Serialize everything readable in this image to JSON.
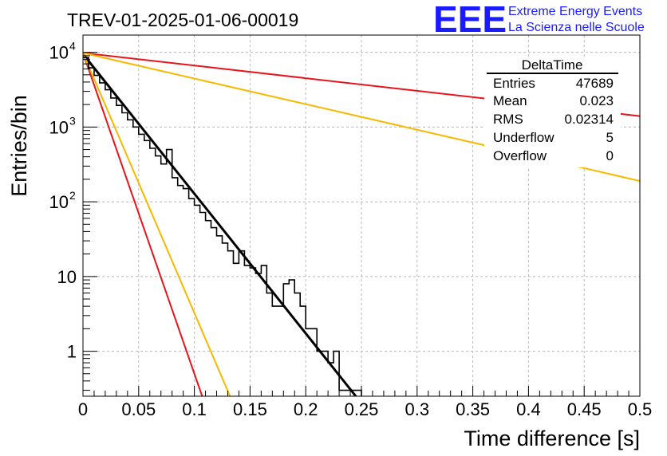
{
  "chart_data": {
    "type": "line",
    "title": "TREV-01-2025-01-06-00019",
    "xlabel": "Time difference [s]",
    "ylabel": "Entries/bin",
    "xlim": [
      0,
      0.5
    ],
    "ylim": [
      0.25,
      17000
    ],
    "yscale": "log",
    "grid": true,
    "x_ticks": [
      "0",
      "0.05",
      "0.1",
      "0.15",
      "0.2",
      "0.25",
      "0.3",
      "0.35",
      "0.4",
      "0.45",
      "0.5"
    ],
    "y_ticks": [
      {
        "value": 1,
        "label": "1"
      },
      {
        "value": 10,
        "label": "10"
      },
      {
        "value": 100,
        "label": "10",
        "exp": "2"
      },
      {
        "value": 1000,
        "label": "10",
        "exp": "3"
      },
      {
        "value": 10000,
        "label": "10",
        "exp": "4"
      }
    ],
    "histogram": {
      "name": "DeltaTime",
      "bin_width": 0.005,
      "counts": [
        8500,
        6200,
        4900,
        3900,
        3150,
        2450,
        1950,
        1550,
        1250,
        1000,
        800,
        660,
        520,
        410,
        320,
        500,
        210,
        165,
        150,
        110,
        90,
        72,
        56,
        45,
        35,
        28,
        22,
        15,
        22,
        14,
        13,
        11,
        14,
        6,
        4,
        4,
        8,
        9,
        6,
        4,
        2,
        2,
        1,
        1,
        0.7,
        1,
        0.3,
        0.3,
        0.3,
        0.3
      ],
      "color": "#000000"
    },
    "series": [
      {
        "values": [
          [
            0,
            9500
          ],
          [
            0.245,
            0.25
          ]
        ],
        "color": "#000000"
      },
      {
        "values": [
          [
            0,
            9800
          ],
          [
            0.107,
            0.25
          ]
        ],
        "color": "#e8141c"
      },
      {
        "values": [
          [
            0,
            9800
          ],
          [
            0.132,
            0.25
          ]
        ],
        "color": "#f8b800"
      },
      {
        "values": [
          [
            0,
            9800
          ],
          [
            0.5,
            1400
          ]
        ],
        "color": "#e8141c"
      },
      {
        "values": [
          [
            0,
            9800
          ],
          [
            0.5,
            190
          ]
        ],
        "color": "#f8b800"
      }
    ]
  },
  "stats_box": {
    "title": "DeltaTime",
    "rows": [
      {
        "label": "Entries",
        "value": "47689"
      },
      {
        "label": "Mean",
        "value": "0.023"
      },
      {
        "label": "RMS",
        "value": "0.02314"
      },
      {
        "label": "Underflow",
        "value": "5"
      },
      {
        "label": "Overflow",
        "value": "0"
      }
    ]
  },
  "logo": {
    "mark": "EEE",
    "line1": "Extreme Energy Events",
    "line2": "La Scienza nelle Scuole",
    "color": "#1b1bff"
  }
}
